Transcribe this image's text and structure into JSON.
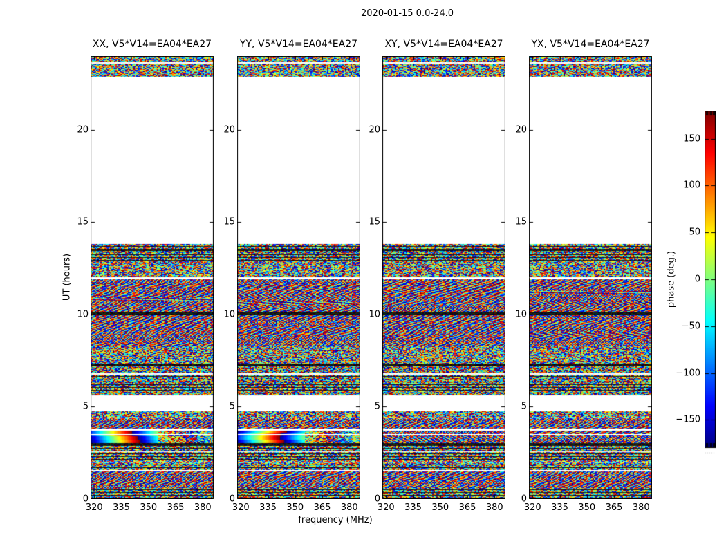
{
  "figure": {
    "title": "2020-01-15 0.0-24.0",
    "background": "#ffffff",
    "text_color": "#000000"
  },
  "panels": [
    {
      "id": "XX",
      "title": "XX, V5*V14=EA04*EA27",
      "rainbow": true,
      "seed": 101
    },
    {
      "id": "YY",
      "title": "YY, V5*V14=EA04*EA27",
      "rainbow": true,
      "seed": 202
    },
    {
      "id": "XY",
      "title": "XY, V5*V14=EA04*EA27",
      "rainbow": false,
      "seed": 303
    },
    {
      "id": "YX",
      "title": "YX, V5*V14=EA04*EA27",
      "rainbow": false,
      "seed": 404
    }
  ],
  "axes": {
    "xlabel": "frequency (MHz)",
    "ylabel": "UT (hours)",
    "xticks": [
      320,
      335,
      350,
      365,
      380
    ],
    "yticks": [
      0,
      5,
      10,
      15,
      20
    ],
    "xrange": [
      318,
      386
    ],
    "yrange": [
      0,
      24
    ]
  },
  "colorbar": {
    "label": "phase (deg.)",
    "ticks": [
      150,
      100,
      50,
      0,
      -50,
      -100,
      -150
    ],
    "range": [
      -180,
      180
    ],
    "colormap": "jet",
    "top_color": "#800000",
    "bottom_color": "#000080"
  },
  "chart_data": {
    "type": "heatmap",
    "title": "2020-01-15 0.0-24.0",
    "subplots": [
      "XX, V5*V14=EA04*EA27",
      "YY, V5*V14=EA04*EA27",
      "XY, V5*V14=EA04*EA27",
      "YX, V5*V14=EA04*EA27"
    ],
    "xlabel": "frequency (MHz)",
    "ylabel": "UT (hours)",
    "x_range_mhz": [
      318,
      386
    ],
    "y_range_hours": [
      0,
      24
    ],
    "value_label": "phase (deg.)",
    "value_range_deg": [
      -180,
      180
    ],
    "colormap": "jet",
    "xticks": [
      320,
      335,
      350,
      365,
      380
    ],
    "yticks": [
      0,
      5,
      10,
      15,
      20
    ],
    "observed_time_segments_hours": [
      [
        0.0,
        4.76
      ],
      [
        5.62,
        13.85
      ],
      [
        22.9,
        24.0
      ]
    ],
    "texture_segments": [
      {
        "t0": 23.7,
        "t1": 24.0,
        "style": "noise"
      },
      {
        "t0": 22.9,
        "t1": 23.62,
        "style": "noise"
      },
      {
        "t0": 13.55,
        "t1": 13.85,
        "style": "scan"
      },
      {
        "t0": 13.45,
        "t1": 13.55,
        "style": "dark"
      },
      {
        "t0": 12.9,
        "t1": 13.45,
        "style": "scan"
      },
      {
        "t0": 12.05,
        "t1": 12.9,
        "style": "noise"
      },
      {
        "t0": 11.0,
        "t1": 11.92,
        "style": "fringe"
      },
      {
        "t0": 10.15,
        "t1": 11.0,
        "style": "fringe"
      },
      {
        "t0": 9.98,
        "t1": 10.15,
        "style": "dark"
      },
      {
        "t0": 9.2,
        "t1": 9.98,
        "style": "fringe"
      },
      {
        "t0": 8.3,
        "t1": 9.2,
        "style": "fringe"
      },
      {
        "t0": 7.35,
        "t1": 8.3,
        "style": "noise"
      },
      {
        "t0": 7.2,
        "t1": 7.35,
        "style": "dark"
      },
      {
        "t0": 6.85,
        "t1": 7.2,
        "style": "scan"
      },
      {
        "t0": 6.15,
        "t1": 6.75,
        "style": "scan"
      },
      {
        "t0": 5.62,
        "t1": 6.15,
        "style": "scan"
      },
      {
        "t0": 4.45,
        "t1": 4.76,
        "style": "noise"
      },
      {
        "t0": 3.85,
        "t1": 4.4,
        "style": "fringe"
      },
      {
        "t0": 3.52,
        "t1": 3.74,
        "style": "rainbow"
      },
      {
        "t0": 3.05,
        "t1": 3.45,
        "style": "rainbow"
      },
      {
        "t0": 2.95,
        "t1": 3.05,
        "style": "dark"
      },
      {
        "t0": 2.6,
        "t1": 2.95,
        "style": "scan"
      },
      {
        "t0": 2.05,
        "t1": 2.55,
        "style": "scan"
      },
      {
        "t0": 1.6,
        "t1": 2.0,
        "style": "scan"
      },
      {
        "t0": 0.6,
        "t1": 1.5,
        "style": "fringe"
      },
      {
        "t0": 0.0,
        "t1": 0.6,
        "style": "scan"
      }
    ]
  }
}
